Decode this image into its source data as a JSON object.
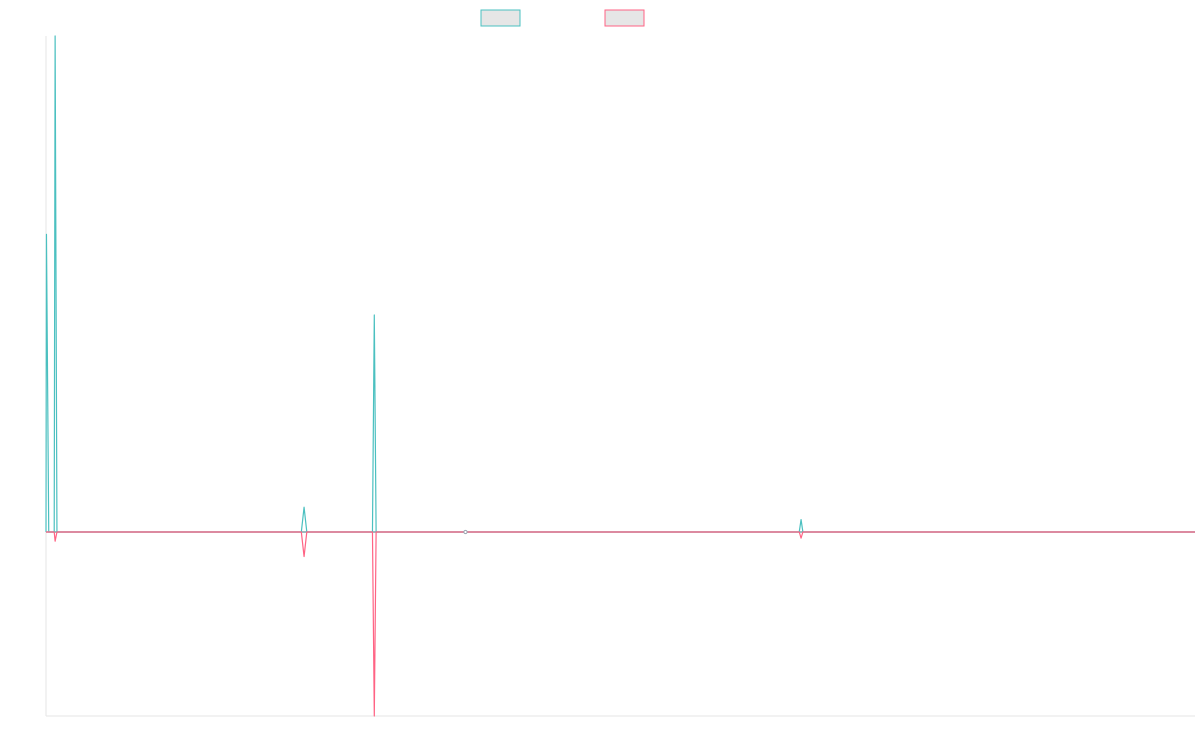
{
  "chart_data": {
    "type": "line",
    "title": "",
    "xlabel": "",
    "ylabel": "",
    "legend": {
      "position": "top-center",
      "labels_visible": false
    },
    "grid": false,
    "xlim": [
      0,
      126
    ],
    "ylim": [
      -30,
      80
    ],
    "series": [
      {
        "color": "#4bc0c0",
        "legend_fill": "#e6e6e6",
        "points": [
          [
            0,
            0
          ],
          [
            0.05,
            48
          ],
          [
            0.3,
            0
          ],
          [
            0.9,
            0
          ],
          [
            1.0,
            80
          ],
          [
            1.2,
            0
          ],
          [
            28,
            0
          ],
          [
            28.3,
            4
          ],
          [
            28.6,
            0
          ],
          [
            35.8,
            0
          ],
          [
            36.0,
            35
          ],
          [
            36.2,
            0
          ],
          [
            82.6,
            0
          ],
          [
            82.8,
            2
          ],
          [
            83.0,
            0
          ],
          [
            126,
            0
          ]
        ]
      },
      {
        "color": "#ff6384",
        "legend_fill": "#e6e6e6",
        "points": [
          [
            0,
            0
          ],
          [
            0.9,
            0
          ],
          [
            1.0,
            -1.5
          ],
          [
            1.2,
            0
          ],
          [
            28,
            0
          ],
          [
            28.3,
            -4
          ],
          [
            28.6,
            0
          ],
          [
            35.8,
            0
          ],
          [
            36.0,
            -30
          ],
          [
            36.2,
            0
          ],
          [
            82.6,
            0
          ],
          [
            82.8,
            -1
          ],
          [
            83.0,
            0
          ],
          [
            126,
            0
          ]
        ]
      }
    ],
    "markers": [
      {
        "x": 46,
        "y": 0,
        "color": "#9aa5b1"
      }
    ]
  }
}
